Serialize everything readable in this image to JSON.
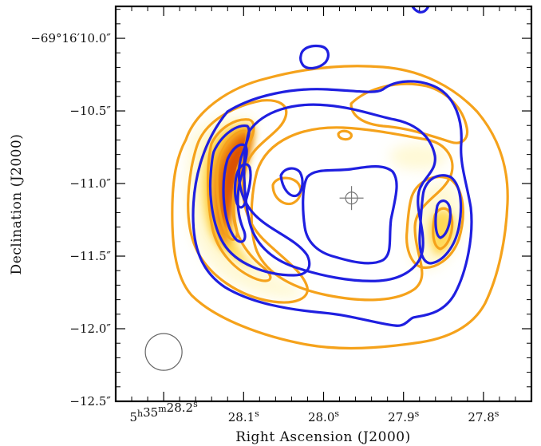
{
  "chart_data": {
    "type": "contour",
    "title": "",
    "xlabel": "Right Ascension (J2000)",
    "ylabel": "Declination (J2000)",
    "x_ticks": [
      {
        "value": 28.2,
        "label_main": "5",
        "sup1": "h",
        "label_mid": "35",
        "sup2": "m",
        "label_sec": "28.2",
        "sup3": "s"
      },
      {
        "value": 28.1,
        "label_main": "",
        "sup1": "",
        "label_mid": "",
        "sup2": "",
        "label_sec": "28.1",
        "sup3": "s"
      },
      {
        "value": 28.0,
        "label_main": "",
        "sup1": "",
        "label_mid": "",
        "sup2": "",
        "label_sec": "28.0",
        "sup3": "s"
      },
      {
        "value": 27.9,
        "label_main": "",
        "sup1": "",
        "label_mid": "",
        "sup2": "",
        "label_sec": "27.9",
        "sup3": "s"
      },
      {
        "value": 27.8,
        "label_main": "",
        "sup1": "",
        "label_mid": "",
        "sup2": "",
        "label_sec": "27.8",
        "sup3": "s"
      }
    ],
    "y_ticks": [
      {
        "value": -10.0,
        "label": "−69°16′10.0″"
      },
      {
        "value": -10.5,
        "label": "−10.5″"
      },
      {
        "value": -11.0,
        "label": "−11.0″"
      },
      {
        "value": -11.5,
        "label": "−11.5″"
      },
      {
        "value": -12.0,
        "label": "−12.0″"
      },
      {
        "value": -12.5,
        "label": "−12.5″"
      }
    ],
    "xlim": [
      28.26,
      27.74
    ],
    "ylim": [
      -12.5,
      -9.78
    ],
    "contour_colors": {
      "series_a": "#f5a21b",
      "series_b": "#1f1fe0"
    },
    "heatmap_colors": [
      "#fff8cf",
      "#ffd64a",
      "#f08a10",
      "#d84a00"
    ],
    "center_marker": {
      "x": 27.965,
      "y": -11.1
    },
    "beam": {
      "x": 28.2,
      "y": -12.16
    }
  }
}
